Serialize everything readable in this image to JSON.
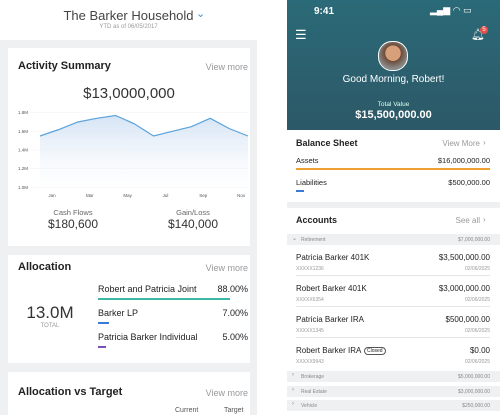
{
  "left": {
    "header": {
      "title": "The Barker Household",
      "subtitle": "YTD as of 06/05/2017"
    },
    "activity": {
      "title": "Activity Summary",
      "link": "View more",
      "total": "$13,0000,000",
      "chart": {
        "yticks": [
          {
            "value": 1.8,
            "label": "1.8M"
          },
          {
            "value": 1.6,
            "label": "1.6M"
          },
          {
            "value": 1.4,
            "label": "1.4M"
          },
          {
            "value": 1.2,
            "label": "1.2M"
          },
          {
            "value": 1.0,
            "label": "1.0M"
          }
        ],
        "ylim": [
          0.95,
          1.85
        ],
        "xlabels": [
          "Jan",
          null,
          "Mar",
          null,
          "May",
          null,
          "Jul",
          null,
          "Sep",
          null,
          "Nov",
          null
        ],
        "values": [
          1.55,
          1.62,
          1.7,
          1.74,
          1.77,
          1.68,
          1.55,
          1.6,
          1.65,
          1.74,
          1.63,
          1.55
        ]
      },
      "stats": [
        {
          "label": "Cash Flows",
          "value": "$180,600"
        },
        {
          "label": "Gain/Loss",
          "value": "$140,000"
        }
      ]
    },
    "allocation": {
      "title": "Allocation",
      "link": "View more",
      "total": "13.0M",
      "total_label": "TOTAL",
      "items": [
        {
          "name": "Robert and Patricia Joint",
          "value": 88,
          "label": "88.00%",
          "color": "#3bb8a8"
        },
        {
          "name": "Barker LP",
          "value": 7,
          "label": "7.00%",
          "color": "#3a7bd5"
        },
        {
          "name": "Patricia Barker Individual",
          "value": 5,
          "label": "5.00%",
          "color": "#7a4fb8"
        }
      ]
    },
    "target": {
      "title": "Allocation vs Target",
      "link": "View more",
      "columns": [
        "Current",
        "Target"
      ]
    }
  },
  "right": {
    "status": {
      "time": "9:41",
      "badge": "5"
    },
    "greeting": "Good Morning, Robert!",
    "total_label": "Total Value",
    "total": "$15,500,000.00",
    "balance": {
      "title": "Balance Sheet",
      "link": "View More",
      "rows": [
        {
          "name": "Assets",
          "value": "$16,000,000.00"
        },
        {
          "name": "Liabilities",
          "value": "$500,000.00"
        }
      ]
    },
    "accounts": {
      "title": "Accounts",
      "link": "See all",
      "groups": [
        {
          "name": "Retirement",
          "value": "$7,000,000.00",
          "items": [
            {
              "name": "Patricia Barker 401K",
              "value": "$3,500,000.00",
              "number": "XXXXX1236",
              "date": "02/06/2025"
            },
            {
              "name": "Robert Barker 401K",
              "value": "$3,000,000.00",
              "number": "XXXXX6354",
              "date": "02/06/2025"
            },
            {
              "name": "Patricia Barker IRA",
              "value": "$500,000.00",
              "number": "XXXXX1345",
              "date": "02/06/2025"
            },
            {
              "name": "Robert Barker IRA",
              "tag": "Closed",
              "value": "$0.00",
              "number": "XXXXX9943",
              "date": "02/06/2025"
            }
          ]
        },
        {
          "name": "Brokerage",
          "value": "$5,000,000.00"
        },
        {
          "name": "Real Estate",
          "value": "$3,000,000.00"
        },
        {
          "name": "Vehicle",
          "value": "$250,000.00"
        }
      ]
    }
  }
}
